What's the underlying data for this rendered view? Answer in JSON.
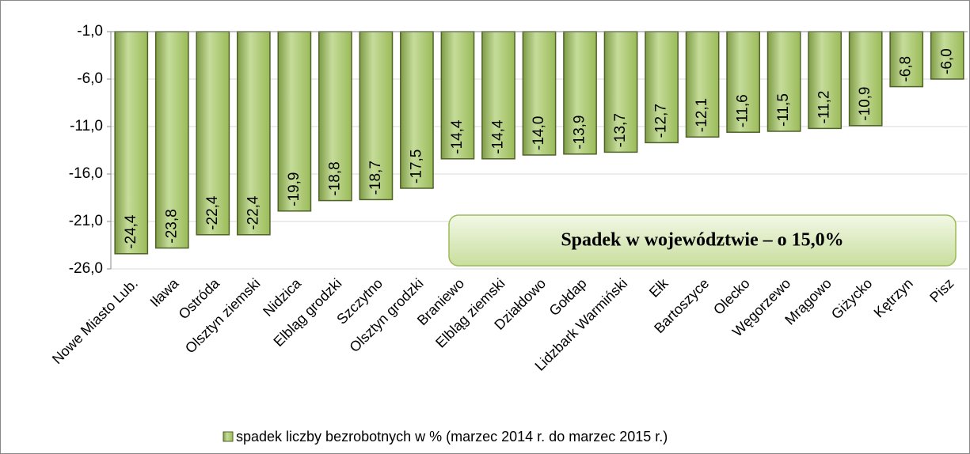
{
  "chart_data": {
    "type": "bar",
    "categories": [
      "Nowe Miasto Lub.",
      "Iława",
      "Ostróda",
      "Olsztyn ziemski",
      "Nidzica",
      "Elbląg grodzki",
      "Szczytno",
      "Olsztyn grodzki",
      "Braniewo",
      "Elbląg ziemski",
      "Działdowo",
      "Gołdap",
      "Lidzbark Warmiński",
      "Ełk",
      "Bartoszyce",
      "Olecko",
      "Węgorzewo",
      "Mrągowo",
      "Giżycko",
      "Kętrzyn",
      "Pisz"
    ],
    "series": [
      {
        "name": "spadek liczby bezrobotnych w %  (marzec 2014 r. do marzec 2015 r.)",
        "color": "#9bbb59",
        "values": [
          -24.4,
          -23.8,
          -22.4,
          -22.4,
          -19.9,
          -18.8,
          -18.7,
          -17.5,
          -14.4,
          -14.4,
          -14.0,
          -13.9,
          -13.7,
          -12.7,
          -12.1,
          -11.6,
          -11.5,
          -11.2,
          -10.9,
          -6.8,
          -6.0
        ],
        "value_labels": [
          "-24,4",
          "-23,8",
          "-22,4",
          "-22,4",
          "-19,9",
          "-18,8",
          "-18,7",
          "-17,5",
          "-14,4",
          "-14,4",
          "-14,0",
          "-13,9",
          "-13,7",
          "-12,7",
          "-12,1",
          "-11,6",
          "-11,5",
          "-11,2",
          "-10,9",
          "-6,8",
          "-6,0"
        ]
      }
    ],
    "ylim": [
      -26,
      -1
    ],
    "yticks": [
      {
        "value": -1,
        "label": "-1,0"
      },
      {
        "value": -6,
        "label": "-6,0"
      },
      {
        "value": -11,
        "label": "-11,0"
      },
      {
        "value": -16,
        "label": "-16,0"
      },
      {
        "value": -21,
        "label": "-21,0"
      },
      {
        "value": -26,
        "label": "-26,0"
      }
    ],
    "grid": true,
    "annotation": "Spadek w województwie – o 15,0%",
    "legend": "bottom"
  }
}
